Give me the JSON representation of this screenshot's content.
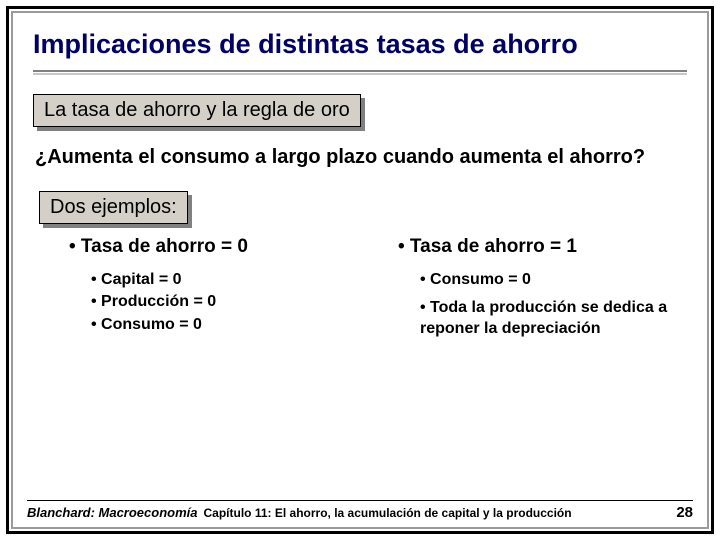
{
  "title": "Implicaciones de distintas tasas de ahorro",
  "box1": "La tasa de ahorro y la regla de oro",
  "question": "¿Aumenta el consumo a largo plazo cuando aumenta el ahorro?",
  "box2": "Dos ejemplos:",
  "col_left": {
    "head": "• Tasa de ahorro = 0",
    "items": [
      "• Capital = 0",
      "• Producción = 0",
      "• Consumo = 0"
    ]
  },
  "col_right": {
    "head": "• Tasa de ahorro = 1",
    "items": [
      "• Consumo = 0",
      "• Toda la producción se dedica a reponer la depreciación"
    ]
  },
  "footer": {
    "author": "Blanchard: Macroeconomía",
    "chapter": "Capítulo 11: El ahorro, la acumulación de capital y la producción",
    "page": "28"
  }
}
